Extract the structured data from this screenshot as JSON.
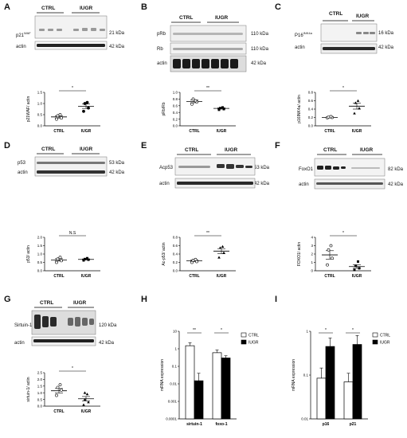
{
  "panels": {
    "A": {
      "label": "A",
      "groups": [
        "CTRL",
        "IUGR"
      ],
      "bands": [
        {
          "name": "p21",
          "sup": "WAF",
          "kda": "21 kDa"
        },
        {
          "name": "actin",
          "sup": "",
          "kda": "42 kDa"
        }
      ],
      "sig": "*",
      "ylabel": "p21WAF/ actin",
      "yticks": [
        "0.0",
        "0.5",
        "1.0",
        "1.5"
      ]
    },
    "B": {
      "label": "B",
      "groups": [
        "CTRL",
        "IUGR"
      ],
      "bands": [
        {
          "name": "pRb",
          "kda": "110 kDa"
        },
        {
          "name": "Rb",
          "kda": "110 kDa"
        },
        {
          "name": "actin",
          "kda": "42 kDa"
        }
      ],
      "sig": "**",
      "ylabel": "pRb/Rb",
      "yticks": [
        "0.0",
        "0.2",
        "0.4",
        "0.6",
        "0.8",
        "1.0"
      ]
    },
    "C": {
      "label": "C",
      "groups": [
        "CTRL",
        "IUGR"
      ],
      "bands": [
        {
          "name": "P16",
          "sup": "INK4a",
          "kda": "16 kDa"
        },
        {
          "name": "actin",
          "sup": "",
          "kda": "42 kDa"
        }
      ],
      "sig": "*",
      "ylabel": "p16INK4a/ actin",
      "yticks": [
        "0.0",
        "0.2",
        "0.4",
        "0.6",
        "0.8"
      ]
    },
    "D": {
      "label": "D",
      "groups": [
        "CTRL",
        "IUGR"
      ],
      "bands": [
        {
          "name": "p53",
          "kda": "53 kDa"
        },
        {
          "name": "actin",
          "kda": "42 kDa"
        }
      ],
      "sig": "N.S",
      "ylabel": "p53/ actin",
      "yticks": [
        "0.0",
        "0.5",
        "1.0",
        "1.5",
        "2.0"
      ]
    },
    "E": {
      "label": "E",
      "groups": [
        "CTRL",
        "IUGR"
      ],
      "bands": [
        {
          "name": "Acp53",
          "kda": "53 kDa"
        },
        {
          "name": "actin",
          "kda": "42 kDa"
        }
      ],
      "sig": "**",
      "ylabel": "Ac-p53/ actin",
      "yticks": [
        "0.0",
        "0.2",
        "0.4",
        "0.6",
        "0.8"
      ]
    },
    "F": {
      "label": "F",
      "groups": [
        "CTRL",
        "IUGR"
      ],
      "bands": [
        {
          "name": "FoxO1",
          "kda": "82 kDa"
        },
        {
          "name": "actin",
          "kda": "42 kDa"
        }
      ],
      "sig": "*",
      "ylabel": "FOXO1/ actin",
      "yticks": [
        "0",
        "1",
        "2",
        "3",
        "4"
      ]
    },
    "G": {
      "label": "G",
      "groups": [
        "CTRL",
        "IUGR"
      ],
      "bands": [
        {
          "name": "Sirtuin-1",
          "kda": "120 kDa"
        },
        {
          "name": "actin",
          "kda": "42 kDa"
        }
      ],
      "sig": "*",
      "ylabel": "sirtuin-1/ actin",
      "yticks": [
        "0.0",
        "0.5",
        "1.0",
        "1.5",
        "2.0",
        "2.5"
      ]
    },
    "H": {
      "label": "H",
      "ylabel": "mRNA expression"
    },
    "I": {
      "label": "I",
      "ylabel": "mRNA expression"
    }
  },
  "chart_data": [
    {
      "panel": "A",
      "type": "scatter",
      "ylabel": "p21WAF/ actin",
      "ylim": [
        0,
        1.5
      ],
      "series": [
        {
          "name": "CTRL",
          "values": [
            0.3,
            0.35,
            0.45,
            0.5
          ],
          "mean": 0.4,
          "sem": 0.05
        },
        {
          "name": "IUGR",
          "values": [
            0.65,
            0.8,
            1.0,
            1.05
          ],
          "mean": 0.88,
          "sem": 0.1
        }
      ],
      "significance": "*"
    },
    {
      "panel": "B",
      "type": "scatter",
      "ylabel": "pRb/Rb",
      "ylim": [
        0,
        1.0
      ],
      "series": [
        {
          "name": "CTRL",
          "values": [
            0.65,
            0.72,
            0.8,
            0.75
          ],
          "mean": 0.73,
          "sem": 0.04
        },
        {
          "name": "IUGR",
          "values": [
            0.48,
            0.5,
            0.53,
            0.55
          ],
          "mean": 0.52,
          "sem": 0.02
        }
      ],
      "significance": "**"
    },
    {
      "panel": "C",
      "type": "scatter",
      "ylabel": "p16INK4a/ actin",
      "ylim": [
        0,
        0.8
      ],
      "series": [
        {
          "name": "CTRL",
          "values": [
            0.19,
            0.2,
            0.21,
            0.22
          ],
          "mean": 0.2,
          "sem": 0.01
        },
        {
          "name": "IUGR",
          "values": [
            0.3,
            0.42,
            0.55,
            0.6
          ],
          "mean": 0.47,
          "sem": 0.07
        }
      ],
      "significance": "*"
    },
    {
      "panel": "D",
      "type": "scatter",
      "ylabel": "p53/ actin",
      "ylim": [
        0,
        2.0
      ],
      "series": [
        {
          "name": "CTRL",
          "values": [
            0.5,
            0.6,
            0.7,
            0.8
          ],
          "mean": 0.65,
          "sem": 0.07
        },
        {
          "name": "IUGR",
          "values": [
            0.62,
            0.66,
            0.7,
            0.75
          ],
          "mean": 0.68,
          "sem": 0.03
        }
      ],
      "significance": "N.S"
    },
    {
      "panel": "E",
      "type": "scatter",
      "ylabel": "Ac-p53/ actin",
      "ylim": [
        0,
        0.8
      ],
      "series": [
        {
          "name": "CTRL",
          "values": [
            0.2,
            0.22,
            0.25,
            0.27
          ],
          "mean": 0.24,
          "sem": 0.02
        },
        {
          "name": "IUGR",
          "values": [
            0.32,
            0.43,
            0.55,
            0.58
          ],
          "mean": 0.47,
          "sem": 0.06
        }
      ],
      "significance": "**"
    },
    {
      "panel": "F",
      "type": "scatter",
      "ylabel": "FOXO1/ actin",
      "ylim": [
        0,
        4
      ],
      "series": [
        {
          "name": "CTRL",
          "values": [
            0.7,
            1.5,
            2.5,
            3.0
          ],
          "mean": 1.9,
          "sem": 0.5
        },
        {
          "name": "IUGR",
          "values": [
            0.1,
            0.3,
            0.6,
            1.1
          ],
          "mean": 0.5,
          "sem": 0.2
        }
      ],
      "significance": "*"
    },
    {
      "panel": "G",
      "type": "scatter",
      "ylabel": "sirtuin-1/ actin",
      "ylim": [
        0,
        2.5
      ],
      "series": [
        {
          "name": "CTRL",
          "values": [
            0.8,
            1.2,
            1.4,
            1.6
          ],
          "mean": 1.15,
          "sem": 0.17
        },
        {
          "name": "IUGR",
          "values": [
            0.1,
            0.3,
            0.5,
            0.9,
            1.0
          ],
          "mean": 0.55,
          "sem": 0.17
        }
      ],
      "significance": "*"
    },
    {
      "panel": "H",
      "type": "bar",
      "log_scale": true,
      "ylabel": "mRNA expression",
      "ylim": [
        0.0001,
        10
      ],
      "yticks": [
        10,
        1,
        0.1,
        0.01,
        0.001,
        0.0001
      ],
      "categories": [
        "sirtuin-1",
        "foxo-1"
      ],
      "series": [
        {
          "name": "CTRL",
          "values": [
            1.5,
            0.6
          ],
          "err": [
            0.7,
            0.25
          ],
          "color": "#ffffff"
        },
        {
          "name": "IUGR",
          "values": [
            0.015,
            0.3
          ],
          "err": [
            0.025,
            0.1
          ],
          "color": "#000000"
        }
      ],
      "significance": [
        "**",
        "*"
      ],
      "legend": "top-right"
    },
    {
      "panel": "I",
      "type": "bar",
      "log_scale": true,
      "ylabel": "mRNA expression",
      "ylim": [
        0.01,
        1
      ],
      "yticks": [
        1,
        0.1,
        0.01
      ],
      "categories": [
        "p16",
        "p21"
      ],
      "series": [
        {
          "name": "CTRL",
          "values": [
            0.085,
            0.07
          ],
          "err": [
            0.06,
            0.04
          ],
          "color": "#ffffff"
        },
        {
          "name": "IUGR",
          "values": [
            0.45,
            0.5
          ],
          "err": [
            0.25,
            0.3
          ],
          "color": "#000000"
        }
      ],
      "significance": [
        "*",
        "*"
      ],
      "legend": "top-right"
    }
  ]
}
